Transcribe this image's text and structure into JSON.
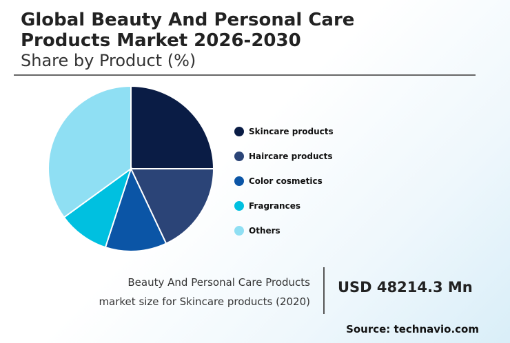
{
  "header": {
    "title_line1": "Global Beauty And Personal Care",
    "title_line2": "Products Market 2026-2030",
    "subtitle": "Share by Product (%)"
  },
  "chart_data": {
    "type": "pie",
    "title": "Global Beauty And Personal Care Products Market 2026-2030",
    "subtitle": "Share by Product (%)",
    "legend_position": "right",
    "categories": [
      "Skincare products",
      "Haircare products",
      "Color cosmetics",
      "Fragrances",
      "Others"
    ],
    "values": [
      25,
      18,
      12,
      10,
      35
    ],
    "colors": [
      "#0a1c45",
      "#2b4477",
      "#0b55a6",
      "#00c0e0",
      "#8fdff3"
    ]
  },
  "market": {
    "label_line1": "Beauty And Personal Care Products",
    "label_line2": "market size for Skincare products (2020)",
    "value": "USD 48214.3 Mn"
  },
  "source": "Source: technavio.com"
}
